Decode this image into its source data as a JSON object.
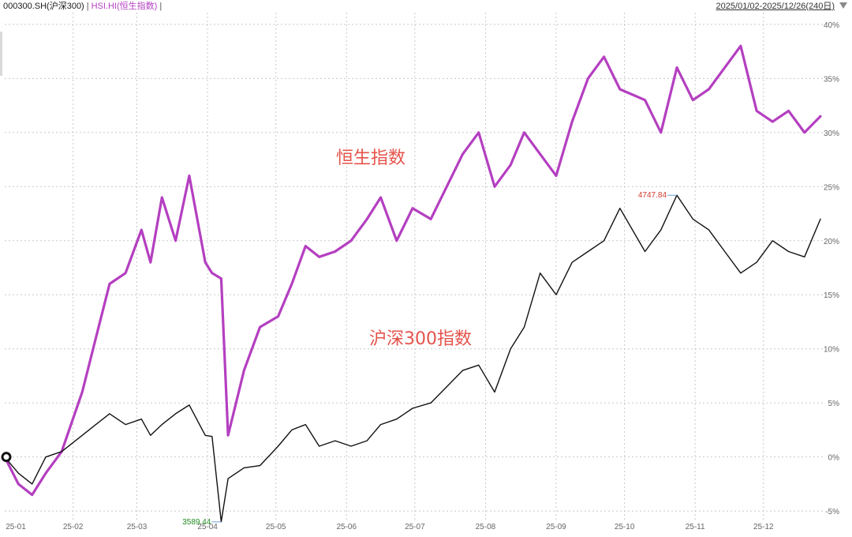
{
  "header": {
    "legend_csi": "000300.SH(沪深300)",
    "legend_sep": "|",
    "legend_hsi": "HSI.HI(恒生指数)",
    "legend_end": "|",
    "date_range": "2025/01/02-2025/12/26(240日)"
  },
  "colors": {
    "hsi": "#b43fc0",
    "csi": "#111111",
    "annotation": "#e5534b",
    "max_label": "#d23a2a",
    "min_label": "#1f8c1f"
  },
  "chart_data": {
    "type": "line",
    "x": [
      "25-01-02",
      "25-01-08",
      "25-01-14",
      "25-01-20",
      "25-01-27",
      "25-02-05",
      "25-02-11",
      "25-02-17",
      "25-02-24",
      "25-03-03",
      "25-03-07",
      "25-03-12",
      "25-03-18",
      "25-03-24",
      "25-03-31",
      "25-04-03",
      "25-04-07",
      "25-04-10",
      "25-04-17",
      "25-04-24",
      "25-05-02",
      "25-05-08",
      "25-05-14",
      "25-05-20",
      "25-05-27",
      "25-06-03",
      "25-06-10",
      "25-06-16",
      "25-06-23",
      "25-06-30",
      "25-07-08",
      "25-07-15",
      "25-07-22",
      "25-07-29",
      "25-08-05",
      "25-08-12",
      "25-08-18",
      "25-08-25",
      "25-09-01",
      "25-09-08",
      "25-09-15",
      "25-09-22",
      "25-09-29",
      "25-10-10",
      "25-10-17",
      "25-10-24",
      "25-10-31",
      "25-11-07",
      "25-11-14",
      "25-11-21",
      "25-11-28",
      "25-12-05",
      "25-12-12",
      "25-12-19",
      "25-12-26"
    ],
    "series": [
      {
        "name": "恒生指数",
        "values": [
          0.0,
          -2.5,
          -3.5,
          -1.5,
          0.5,
          6,
          11,
          16,
          17,
          21,
          18,
          24,
          20,
          26,
          18,
          17,
          16.5,
          2,
          8,
          12,
          13,
          16,
          19.5,
          18.5,
          19,
          20,
          22,
          24,
          20,
          23,
          22,
          25,
          28,
          30,
          25,
          27,
          30,
          28,
          26,
          31,
          35,
          37,
          34,
          33,
          30,
          36,
          33,
          34,
          36,
          38,
          32,
          31,
          32,
          30,
          31.5
        ]
      },
      {
        "name": "沪深300",
        "values": [
          0.0,
          -1.5,
          -2.5,
          0,
          0.5,
          2,
          3,
          4,
          3,
          3.5,
          2,
          3,
          4,
          4.8,
          2,
          1.9,
          -6,
          -2,
          -1,
          -0.8,
          1,
          2.5,
          3,
          1,
          1.5,
          1,
          1.5,
          3,
          3.5,
          4.5,
          5,
          6.5,
          8,
          8.5,
          6,
          10,
          12,
          17,
          15,
          18,
          19,
          20,
          23,
          19,
          21,
          24.2,
          22,
          21,
          19,
          17,
          18,
          20,
          19,
          18.5,
          22
        ]
      }
    ],
    "categories": [
      "25-01",
      "25-02",
      "25-03",
      "25-04",
      "25-05",
      "25-06",
      "25-07",
      "25-08",
      "25-09",
      "25-10",
      "25-11",
      "25-12"
    ],
    "y_ticks": [
      "40%",
      "35%",
      "30%",
      "25%",
      "20%",
      "15%",
      "10%",
      "5%",
      "0%",
      "-5%"
    ],
    "ylim": [
      -5.5,
      40.5
    ],
    "annotations": {
      "hsi_label": "恒生指数",
      "csi_label": "沪深300指数"
    },
    "max_marker": {
      "label": "4747.84",
      "x": "25-10-24",
      "y": 24.2
    },
    "min_marker": {
      "label": "3589.44",
      "x": "25-04-07",
      "y": -6
    },
    "grid": true
  }
}
